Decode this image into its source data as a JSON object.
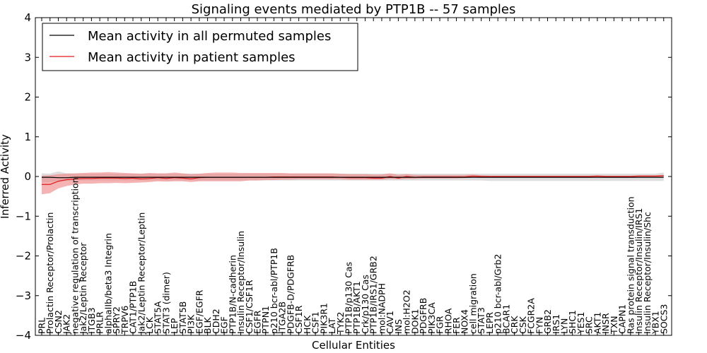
{
  "chart_data": {
    "type": "line",
    "title": "Signaling events mediated by PTP1B -- 57 samples",
    "xlabel": "Cellular Entities",
    "ylabel": "Inferred Activity",
    "ylim": [
      -4,
      4
    ],
    "yticks": [
      "−4",
      "−3",
      "−2",
      "−1",
      "0",
      "1",
      "2",
      "3",
      "4"
    ],
    "legend_position": "top-left",
    "colors": {
      "permuted_line": "#000000",
      "permuted_band": "#bdbdbd",
      "patient_line": "#e31a1c",
      "patient_band": "#f08080"
    },
    "categories": [
      "PRL",
      "Prolactin Receptor/Prolactin",
      "CSN2",
      "JAK2",
      "negative regulation of transcription",
      "Jak2/Leptin Receptor",
      "ITGB3",
      "PRLR",
      "alphaIIb/beta3 Integrin",
      "SPRY2",
      "TRPV6",
      "CAT1/PTP1B",
      "Jak2/Leptin Receptor/Leptin",
      "LCK",
      "STAT5A",
      "STAT3 (dimer)",
      "LEP",
      "STAT5B",
      "PI3K",
      "EGF/EGFR",
      "BLK",
      "CDH2",
      "EGF",
      "PTP1B/N-cadherin",
      "Insulin Receptor/Insulin",
      "CSF1/CSF1R",
      "EGFR",
      "PTPN1",
      "p210 bcr-abl/PTP1B",
      "ITGA2B",
      "PDGFB-D/PDGFRB",
      "CSF1R",
      "HCK",
      "CSF1",
      "PIK3R1",
      "LAT",
      "TYK2",
      "PTP1B/p130 Cas",
      "PTP1B/AKT1",
      "Crk/p130 Cas",
      "PTP1B/IRS1/GRB2",
      "mol:NADPH",
      "CAV1",
      "INS",
      "mol:H2O2",
      "DOK1",
      "PDGFRB",
      "PIK3CA",
      "FGR",
      "RHOA",
      "FER",
      "NOX4",
      "cell migration",
      "STAT3",
      "LEPR",
      "p210 bcr-abl/Grb2",
      "BCAR1",
      "CRK",
      "CSK",
      "FCGR2A",
      "FYN",
      "GRB2",
      "IRS1",
      "LYN",
      "SHC1",
      "YES1",
      "SRC",
      "AKT1",
      "INSR",
      "TXN",
      "CAPN1",
      "Ras protein signal transduction",
      "Insulin Receptor/Insulin/IRS1",
      "Insulin Receptor/Insulin/Shc",
      "YBX1",
      "SOCS3"
    ],
    "series": [
      {
        "name": "Mean activity in all permuted samples",
        "values": [
          -0.02,
          -0.02,
          -0.03,
          -0.03,
          -0.02,
          -0.02,
          -0.02,
          -0.02,
          -0.02,
          -0.02,
          -0.02,
          -0.02,
          -0.02,
          -0.02,
          -0.02,
          -0.02,
          -0.02,
          -0.02,
          -0.02,
          -0.02,
          -0.02,
          -0.02,
          -0.02,
          -0.02,
          -0.02,
          -0.02,
          -0.02,
          -0.02,
          -0.02,
          -0.02,
          -0.02,
          -0.02,
          -0.02,
          -0.02,
          -0.02,
          -0.02,
          -0.02,
          -0.02,
          -0.02,
          -0.02,
          -0.02,
          -0.02,
          -0.02,
          -0.02,
          -0.02,
          -0.02,
          -0.02,
          -0.02,
          -0.02,
          -0.02,
          -0.02,
          -0.02,
          -0.02,
          -0.02,
          -0.02,
          -0.02,
          -0.02,
          -0.02,
          -0.02,
          -0.02,
          -0.02,
          -0.02,
          -0.02,
          -0.02,
          -0.02,
          -0.02,
          -0.02,
          -0.02,
          -0.02,
          -0.02,
          -0.02,
          -0.02,
          -0.02,
          -0.02,
          -0.02,
          -0.02
        ],
        "lower": [
          -0.15,
          -0.14,
          -0.12,
          -0.11,
          -0.1,
          -0.1,
          -0.1,
          -0.1,
          -0.1,
          -0.1,
          -0.1,
          -0.1,
          -0.1,
          -0.1,
          -0.1,
          -0.1,
          -0.1,
          -0.1,
          -0.1,
          -0.1,
          -0.1,
          -0.1,
          -0.1,
          -0.1,
          -0.1,
          -0.1,
          -0.1,
          -0.1,
          -0.1,
          -0.1,
          -0.1,
          -0.1,
          -0.1,
          -0.1,
          -0.1,
          -0.1,
          -0.1,
          -0.1,
          -0.1,
          -0.1,
          -0.1,
          -0.1,
          -0.1,
          -0.1,
          -0.1,
          -0.1,
          -0.1,
          -0.1,
          -0.1,
          -0.1,
          -0.1,
          -0.1,
          -0.1,
          -0.1,
          -0.11,
          -0.11,
          -0.11,
          -0.11,
          -0.11,
          -0.11,
          -0.11,
          -0.11,
          -0.11,
          -0.11,
          -0.11,
          -0.11,
          -0.11,
          -0.11,
          -0.11,
          -0.11,
          -0.11,
          -0.11,
          -0.11,
          -0.11,
          -0.11,
          -0.11
        ],
        "upper": [
          0.08,
          0.07,
          0.13,
          0.08,
          0.07,
          0.07,
          0.07,
          0.07,
          0.07,
          0.07,
          0.07,
          0.07,
          0.07,
          0.07,
          0.07,
          0.07,
          0.07,
          0.07,
          0.07,
          0.07,
          0.07,
          0.07,
          0.07,
          0.07,
          0.07,
          0.07,
          0.07,
          0.07,
          0.07,
          0.07,
          0.07,
          0.07,
          0.07,
          0.07,
          0.07,
          0.07,
          0.07,
          0.07,
          0.07,
          0.07,
          0.07,
          0.07,
          0.07,
          0.07,
          0.07,
          0.07,
          0.07,
          0.07,
          0.07,
          0.07,
          0.07,
          0.07,
          0.07,
          0.07,
          0.07,
          0.07,
          0.07,
          0.07,
          0.07,
          0.07,
          0.07,
          0.07,
          0.07,
          0.07,
          0.07,
          0.07,
          0.07,
          0.07,
          0.07,
          0.07,
          0.07,
          0.07,
          0.07,
          0.07,
          0.07,
          0.1
        ]
      },
      {
        "name": "Mean activity in patient samples",
        "values": [
          -0.2,
          -0.2,
          -0.12,
          -0.08,
          -0.06,
          -0.05,
          -0.05,
          -0.04,
          -0.04,
          -0.04,
          -0.05,
          -0.04,
          -0.06,
          -0.05,
          -0.03,
          -0.05,
          -0.03,
          -0.04,
          -0.06,
          -0.03,
          -0.02,
          -0.02,
          -0.02,
          -0.02,
          -0.02,
          -0.02,
          -0.02,
          -0.02,
          -0.01,
          -0.01,
          -0.01,
          -0.01,
          -0.01,
          -0.01,
          -0.01,
          -0.01,
          -0.02,
          -0.03,
          -0.03,
          -0.03,
          -0.04,
          -0.04,
          0.0,
          -0.04,
          0.0,
          -0.02,
          -0.01,
          -0.01,
          -0.01,
          -0.01,
          -0.01,
          -0.01,
          0.01,
          0.0,
          0.0,
          0.0,
          0.0,
          0.0,
          0.0,
          0.0,
          0.0,
          0.0,
          0.0,
          0.0,
          0.0,
          0.0,
          0.0,
          0.01,
          0.0,
          0.0,
          0.0,
          0.0,
          0.01,
          0.01,
          0.01,
          0.02
        ],
        "lower": [
          -0.45,
          -0.42,
          -0.3,
          -0.24,
          -0.2,
          -0.18,
          -0.18,
          -0.17,
          -0.17,
          -0.16,
          -0.17,
          -0.16,
          -0.15,
          -0.14,
          -0.12,
          -0.13,
          -0.12,
          -0.12,
          -0.14,
          -0.12,
          -0.12,
          -0.12,
          -0.12,
          -0.12,
          -0.12,
          -0.1,
          -0.1,
          -0.09,
          -0.09,
          -0.08,
          -0.08,
          -0.07,
          -0.07,
          -0.07,
          -0.07,
          -0.07,
          -0.07,
          -0.08,
          -0.08,
          -0.08,
          -0.08,
          -0.08,
          -0.06,
          -0.07,
          -0.06,
          -0.06,
          -0.05,
          -0.05,
          -0.05,
          -0.05,
          -0.05,
          -0.04,
          -0.02,
          -0.02,
          -0.02,
          -0.02,
          -0.02,
          -0.02,
          -0.02,
          -0.02,
          -0.02,
          -0.02,
          -0.02,
          -0.02,
          -0.02,
          -0.02,
          -0.02,
          -0.02,
          -0.02,
          -0.02,
          -0.02,
          -0.02,
          -0.02,
          -0.02,
          -0.02,
          -0.01
        ],
        "upper": [
          0.02,
          0.03,
          0.06,
          0.07,
          0.08,
          0.09,
          0.1,
          0.1,
          0.11,
          0.1,
          0.09,
          0.08,
          0.07,
          0.09,
          0.08,
          0.08,
          0.1,
          0.08,
          0.06,
          0.07,
          0.09,
          0.1,
          0.1,
          0.1,
          0.09,
          0.09,
          0.09,
          0.09,
          0.09,
          0.09,
          0.08,
          0.08,
          0.08,
          0.08,
          0.08,
          0.08,
          0.07,
          0.06,
          0.06,
          0.06,
          0.05,
          0.05,
          0.08,
          0.04,
          0.06,
          0.04,
          0.04,
          0.04,
          0.04,
          0.04,
          0.04,
          0.04,
          0.05,
          0.03,
          0.02,
          0.02,
          0.02,
          0.02,
          0.02,
          0.02,
          0.02,
          0.02,
          0.02,
          0.02,
          0.02,
          0.02,
          0.02,
          0.03,
          0.02,
          0.02,
          0.02,
          0.02,
          0.03,
          0.03,
          0.03,
          0.04
        ]
      }
    ]
  }
}
